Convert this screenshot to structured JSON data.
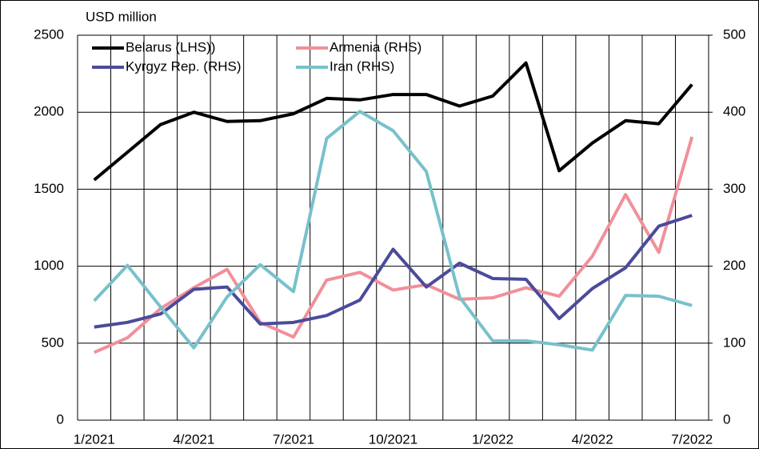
{
  "chart_data": {
    "type": "line",
    "y_label": "USD million",
    "categories": [
      "1/2021",
      null,
      null,
      "4/2021",
      null,
      null,
      "7/2021",
      null,
      null,
      "10/2021",
      null,
      null,
      "1/2022",
      null,
      null,
      "4/2022",
      null,
      null,
      "7/2022"
    ],
    "series": [
      {
        "name": "Belarus (LHS))",
        "color": "#000000",
        "axis": "y",
        "values": [
          1560,
          1740,
          1920,
          2000,
          1940,
          1945,
          1990,
          2090,
          2080,
          2115,
          2115,
          2040,
          2105,
          2320,
          1620,
          1800,
          1945,
          1925,
          2180
        ]
      },
      {
        "name": "Armenia (RHS)",
        "color": "#f0909a",
        "axis": "y2",
        "values": [
          88,
          107,
          145,
          172,
          196,
          127,
          108,
          182,
          192,
          169,
          176,
          157,
          159,
          172,
          161,
          213,
          293,
          218,
          368
        ]
      },
      {
        "name": "Kyrgyz Rep. (RHS)",
        "color": "#4b4b9b",
        "axis": "y2",
        "values": [
          121,
          127,
          138,
          170,
          173,
          125,
          127,
          136,
          156,
          222,
          173,
          204,
          184,
          183,
          132,
          171,
          198,
          252,
          266
        ]
      },
      {
        "name": "Iran (RHS)",
        "color": "#78c1cb",
        "axis": "y2",
        "values": [
          155,
          201,
          147,
          94,
          160,
          202,
          167,
          366,
          401,
          376,
          323,
          160,
          103,
          103,
          98,
          91,
          162,
          161,
          149
        ]
      }
    ],
    "ylim": [
      0,
      2500
    ],
    "yticks": [
      0,
      500,
      1000,
      1500,
      2000,
      2500
    ],
    "y2lim": [
      0,
      500
    ],
    "y2ticks": [
      0,
      100,
      200,
      300,
      400,
      500
    ],
    "grid": true
  }
}
